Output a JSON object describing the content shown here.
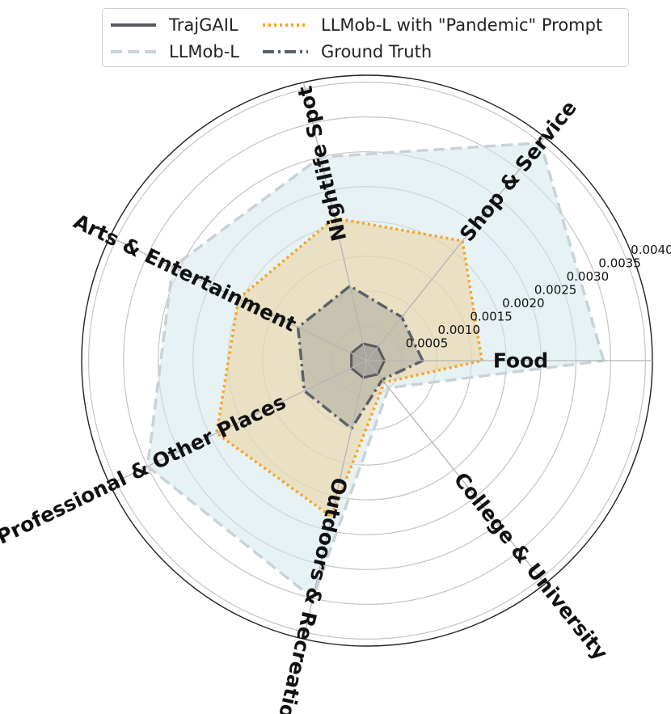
{
  "chart_data": {
    "type": "radar",
    "categories": [
      "Food",
      "Shop & Service",
      "Nightlife Spot",
      "Arts & Entertainment",
      "Professional & Other Places",
      "Outdoors & Recreation",
      "College & University"
    ],
    "radial_ticks": [
      "0.0005",
      "0.0010",
      "0.0015",
      "0.0020",
      "0.0025",
      "0.0030",
      "0.0035",
      "0.0040"
    ],
    "rlim": [
      0,
      0.0041
    ],
    "grid": true,
    "legend_position": "top",
    "series": [
      {
        "name": "LLMob-L",
        "style": "dashed",
        "color": "#c7d3d7",
        "fill": "#d3e7ec",
        "values": [
          0.0034,
          0.004,
          0.003,
          0.0031,
          0.0035,
          0.0035,
          0.0005
        ]
      },
      {
        "name": "LLMob-L with \"Pandemic\" Prompt",
        "style": "dotted",
        "color": "#f5a623",
        "fill": "#edd29a",
        "values": [
          0.00165,
          0.0022,
          0.0021,
          0.00205,
          0.0024,
          0.0023,
          0.0004
        ]
      },
      {
        "name": "Ground Truth",
        "style": "dashdot",
        "color": "#5a6268",
        "fill": "#a9ab9f",
        "values": [
          0.0008,
          0.0008,
          0.0011,
          0.0011,
          0.001,
          0.001,
          0.00035
        ]
      },
      {
        "name": "TrajGAIL",
        "style": "solid",
        "color": "#5a5a60",
        "fill": "#8f8f8f",
        "values": [
          0.00025,
          0.00025,
          0.00025,
          0.00025,
          0.00025,
          0.00025,
          0.00025
        ]
      }
    ],
    "legend_order": [
      "TrajGAIL",
      "LLMob-L",
      "LLMob-L with \"Pandemic\" Prompt",
      "Ground Truth"
    ]
  }
}
